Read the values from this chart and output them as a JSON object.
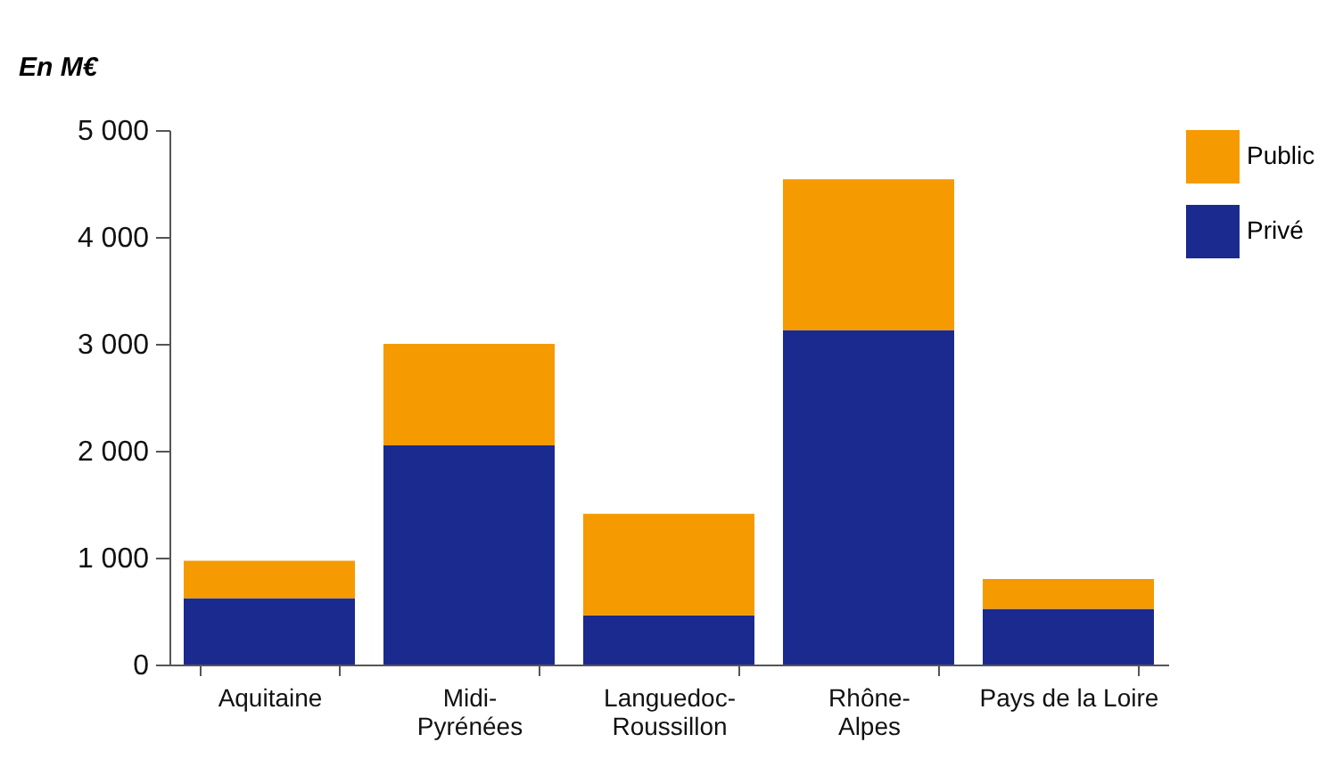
{
  "chart_data": {
    "type": "bar",
    "stacked": true,
    "ylabel": "En M€",
    "categories": [
      "Aquitaine",
      "Midi-Pyrénées",
      "Languedoc-Roussillon",
      "Rhône-Alpes",
      "Pays de la Loire"
    ],
    "series": [
      {
        "name": "Privé",
        "color": "#1b2a8e",
        "values": [
          620,
          2050,
          460,
          3130,
          520
        ]
      },
      {
        "name": "Public",
        "color": "#f59a00",
        "values": [
          350,
          950,
          950,
          1410,
          280
        ]
      }
    ],
    "ylim": [
      0,
      5000
    ],
    "yticks": [
      {
        "value": 0,
        "label": "0"
      },
      {
        "value": 1000,
        "label": "1 000"
      },
      {
        "value": 2000,
        "label": "2 000"
      },
      {
        "value": 3000,
        "label": "3 000"
      },
      {
        "value": 4000,
        "label": "4 000"
      },
      {
        "value": 5000,
        "label": "5 000"
      }
    ],
    "grid": false,
    "legend": "top right"
  }
}
